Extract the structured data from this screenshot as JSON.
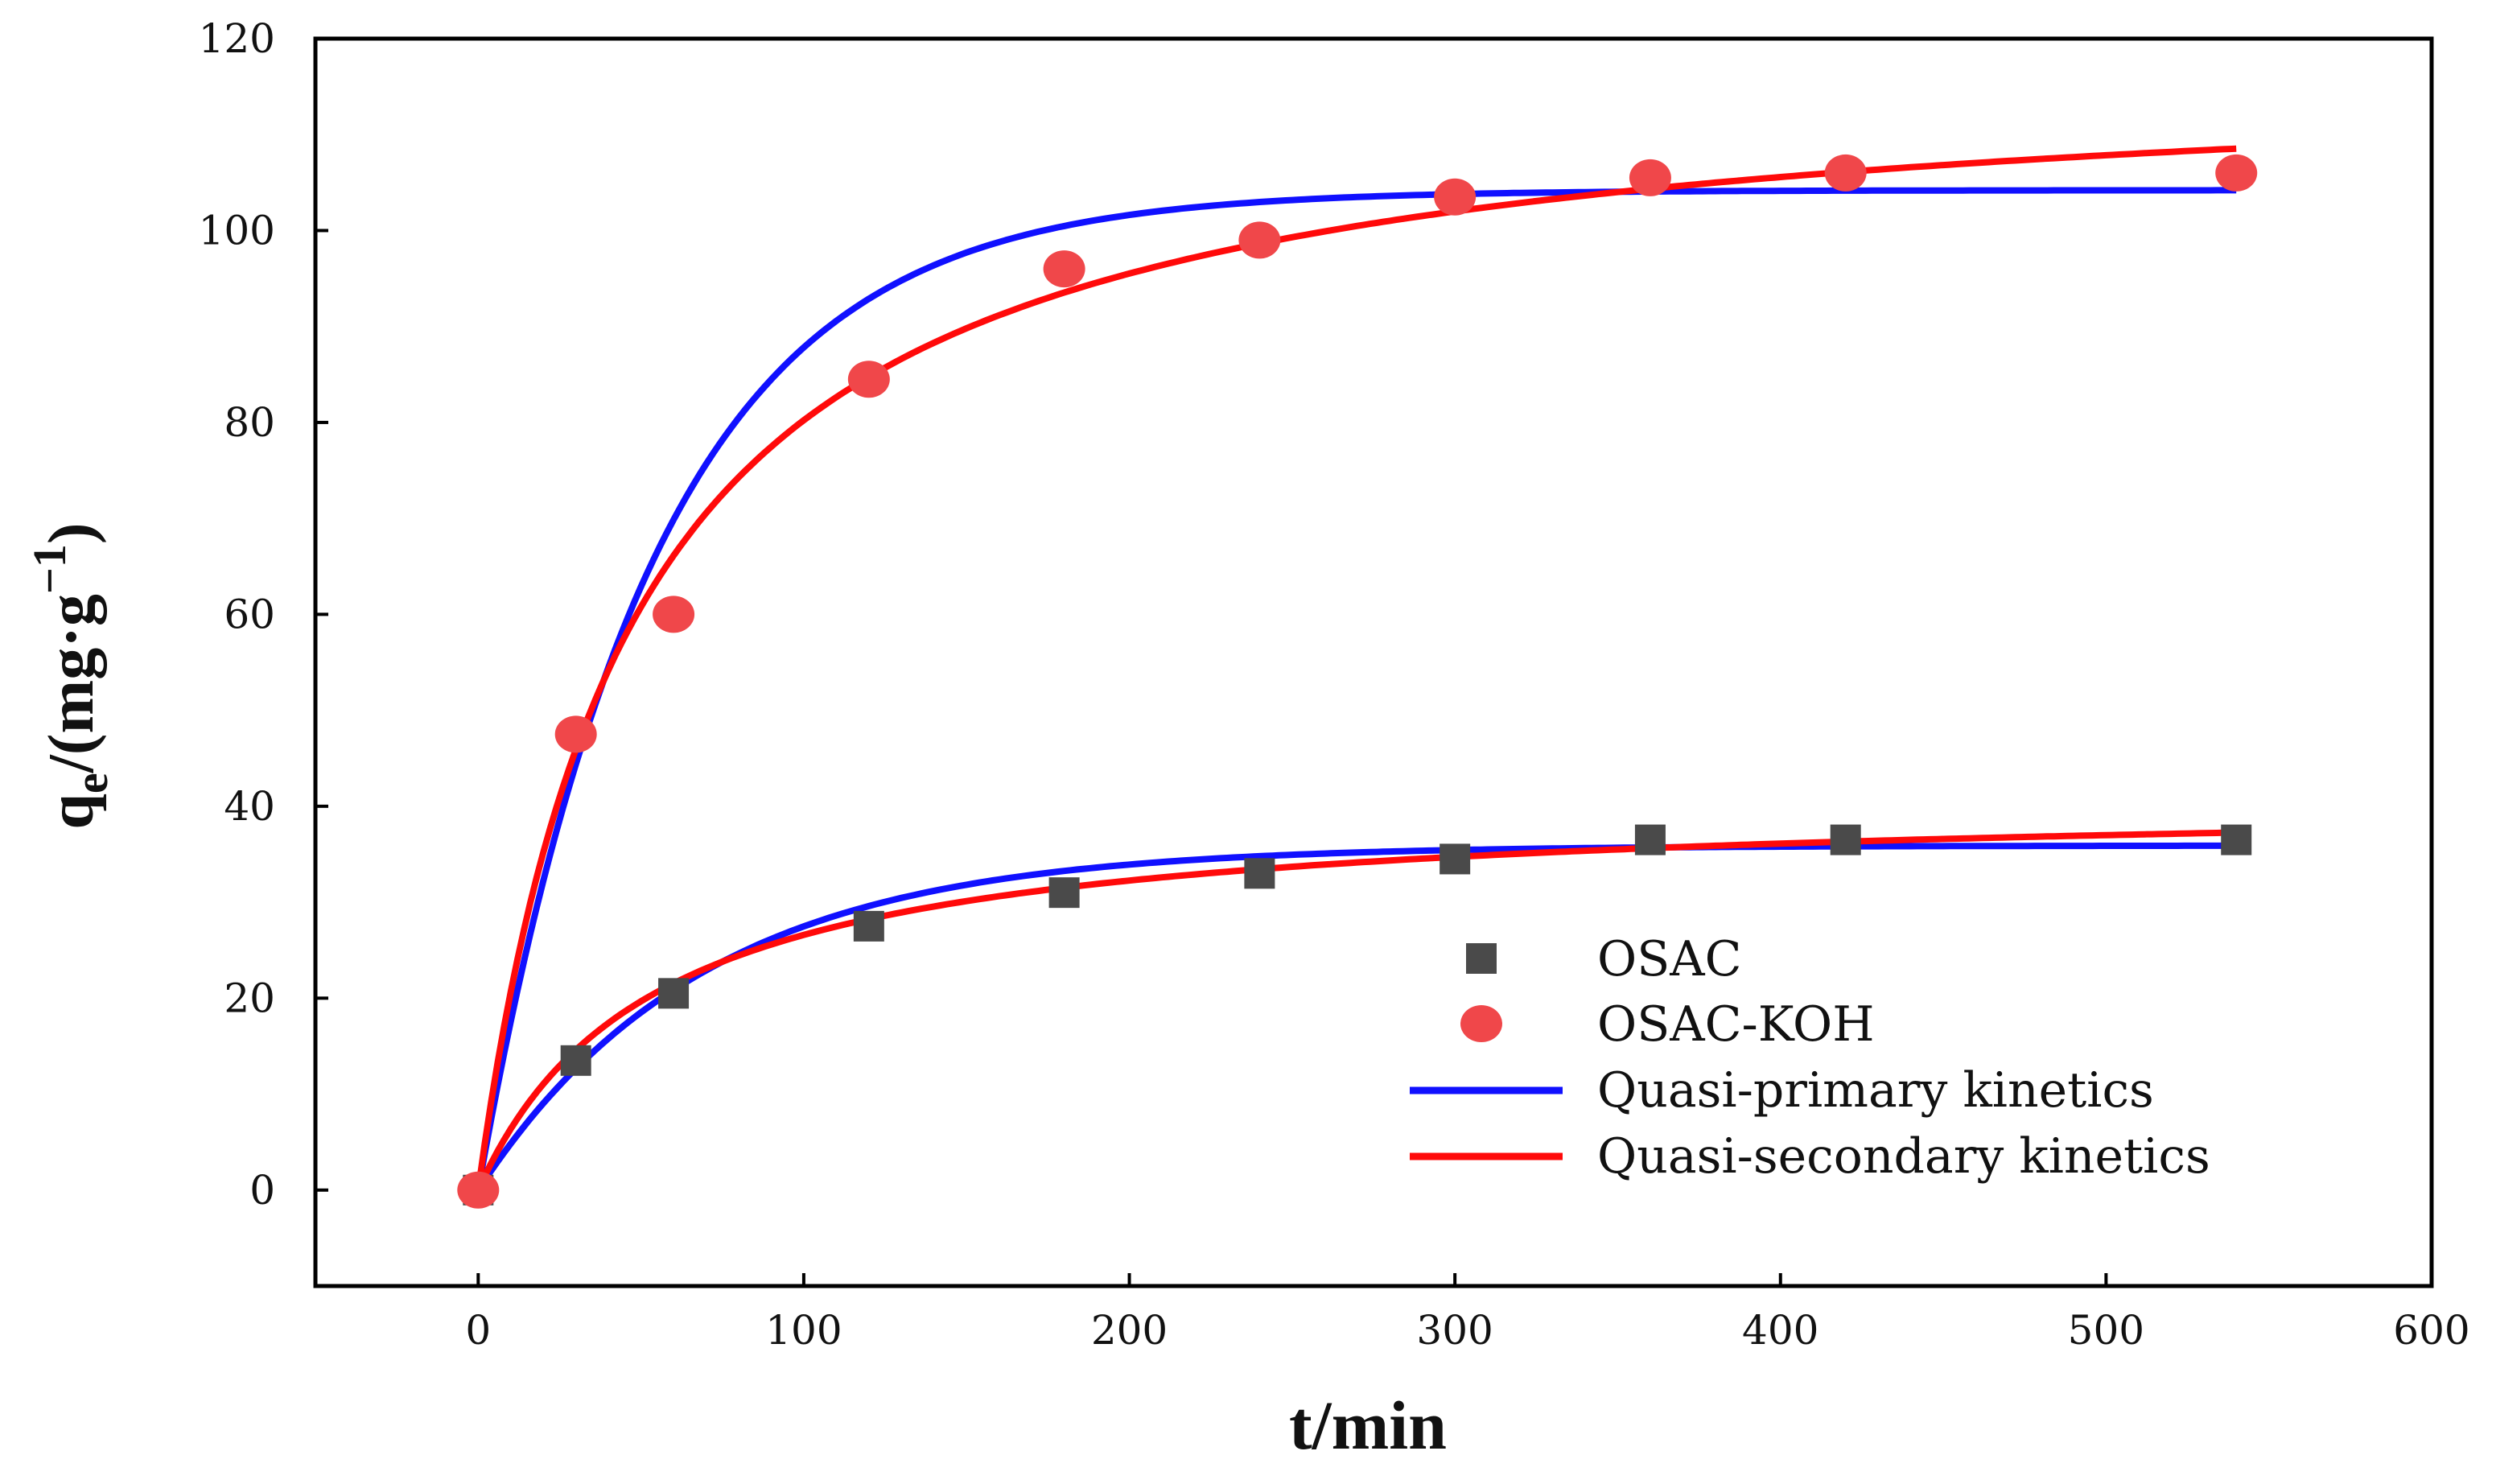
{
  "chart_data": {
    "type": "scatter",
    "title": "",
    "xlabel": "t/min",
    "ylabel": {
      "base": "q",
      "sub": "e",
      "after_sub": "/(mg·g",
      "sup": "−1",
      "close": ")"
    },
    "xlim": [
      -50,
      600
    ],
    "ylim": [
      -10,
      120
    ],
    "xticks": [
      0,
      100,
      200,
      300,
      400,
      500,
      600
    ],
    "yticks": [
      0,
      20,
      40,
      60,
      80,
      100,
      120
    ],
    "grid": false,
    "legend_position": "lower-right",
    "series": [
      {
        "name": "OSAC",
        "kind": "points",
        "marker": "square",
        "color": "#4a4a4a",
        "x": [
          0,
          30,
          60,
          120,
          180,
          240,
          300,
          360,
          420,
          540
        ],
        "y": [
          0,
          13.5,
          20.5,
          27.5,
          31,
          33,
          34.5,
          36.5,
          36.5,
          36.5
        ]
      },
      {
        "name": "OSAC-KOH",
        "kind": "points",
        "marker": "circle",
        "color": "#f0474a",
        "x": [
          0,
          30,
          60,
          120,
          180,
          240,
          300,
          360,
          420,
          540
        ],
        "y": [
          0,
          47.5,
          60,
          84.5,
          96,
          99,
          103.5,
          105.5,
          106,
          106
        ]
      },
      {
        "name": "Quasi-primary kinetics",
        "kind": "curve",
        "model": "pfo",
        "color": "#1010ff",
        "fits": [
          {
            "qe": 104.2,
            "k": 0.0185
          },
          {
            "qe": 35.9,
            "k": 0.0145
          }
        ],
        "x_range": [
          0,
          540
        ]
      },
      {
        "name": "Quasi-secondary kinetics",
        "kind": "curve",
        "model": "pso",
        "color": "#ff0a0a",
        "fits": [
          {
            "qe": 118,
            "k": 0.00018
          },
          {
            "qe": 41.0,
            "k": 0.00045
          }
        ],
        "x_range": [
          0,
          540
        ]
      }
    ]
  }
}
